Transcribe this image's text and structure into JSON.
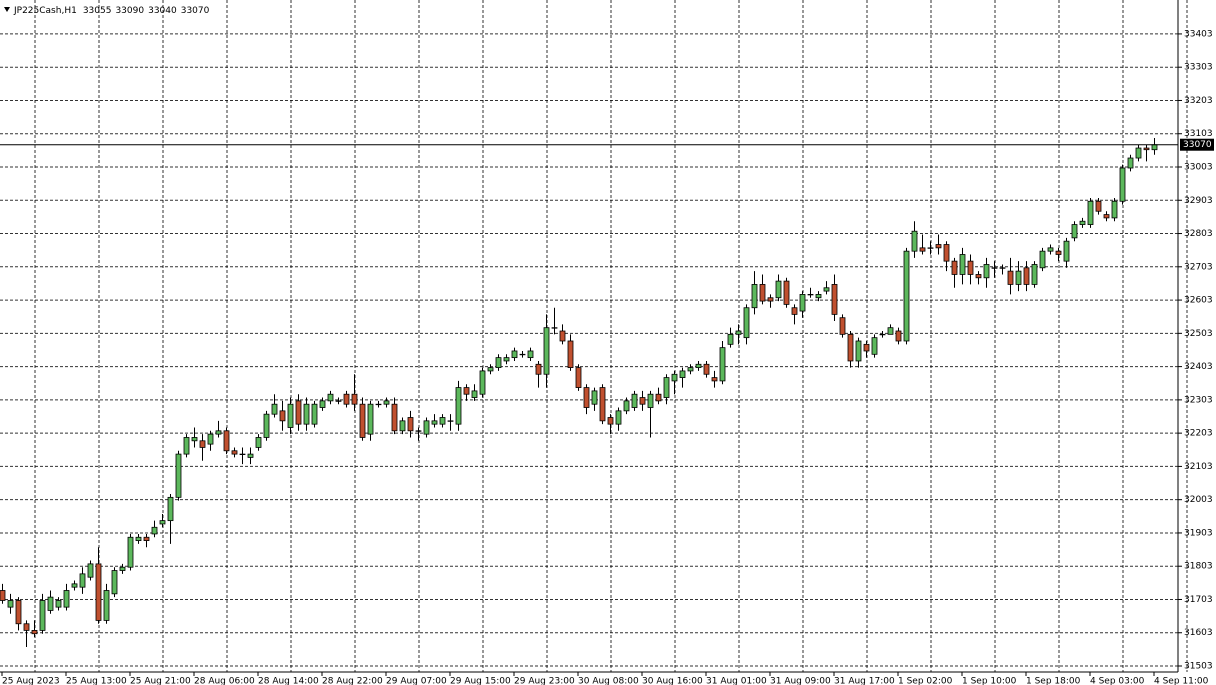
{
  "chart_data": {
    "type": "candlestick",
    "title": "JP225Cash,H1",
    "categories": [
      "25 Aug 2023",
      null,
      null,
      null,
      null,
      null,
      null,
      null,
      "25 Aug 13:00",
      null,
      null,
      null,
      null,
      null,
      null,
      null,
      "25 Aug 21:00",
      null,
      null,
      null,
      null,
      null,
      null,
      null,
      "28 Aug 06:00",
      null,
      null,
      null,
      null,
      null,
      null,
      null,
      "28 Aug 14:00",
      null,
      null,
      null,
      null,
      null,
      null,
      null,
      "28 Aug 22:00",
      null,
      null,
      null,
      null,
      null,
      null,
      null,
      "29 Aug 07:00",
      null,
      null,
      null,
      null,
      null,
      null,
      null,
      "29 Aug 15:00",
      null,
      null,
      null,
      null,
      null,
      null,
      null,
      "29 Aug 23:00",
      null,
      null,
      null,
      null,
      null,
      null,
      null,
      "30 Aug 08:00",
      null,
      null,
      null,
      null,
      null,
      null,
      null,
      "30 Aug 16:00",
      null,
      null,
      null,
      null,
      null,
      null,
      null,
      "31 Aug 01:00",
      null,
      null,
      null,
      null,
      null,
      null,
      null,
      "31 Aug 09:00",
      null,
      null,
      null,
      null,
      null,
      null,
      null,
      "31 Aug 17:00",
      null,
      null,
      null,
      null,
      null,
      null,
      null,
      "1 Sep 02:00",
      null,
      null,
      null,
      null,
      null,
      null,
      null,
      "1 Sep 10:00",
      null,
      null,
      null,
      null,
      null,
      null,
      null,
      "1 Sep 18:00",
      null,
      null,
      null,
      null,
      null,
      null,
      null,
      "4 Sep 03:00",
      null,
      null,
      null,
      null,
      null,
      null,
      null,
      "4 Sep 11:00"
    ],
    "open": [
      31730,
      31680,
      31700,
      31630,
      31610,
      31610,
      31670,
      31680,
      31680,
      31740,
      31740,
      31770,
      31810,
      31640,
      31720,
      31790,
      31800,
      31880,
      31890,
      31900,
      31930,
      31940,
      32010,
      32140,
      32180,
      32180,
      32170,
      32200,
      32210,
      32150,
      32140,
      32130,
      32160,
      32190,
      32260,
      32270,
      32220,
      32300,
      32230,
      32230,
      32280,
      32300,
      32300,
      32320,
      32320,
      32290,
      32200,
      32290,
      32290,
      32290,
      32210,
      32250,
      32210,
      32200,
      32230,
      32230,
      32240,
      32230,
      32340,
      32310,
      32320,
      32390,
      32400,
      32420,
      32430,
      32440,
      32430,
      32410,
      32380,
      32520,
      32510,
      32480,
      32400,
      32340,
      32290,
      32340,
      32250,
      32230,
      32270,
      32280,
      32310,
      32280,
      32320,
      32310,
      32360,
      32370,
      32390,
      32400,
      32410,
      32370,
      32360,
      32470,
      32500,
      32490,
      32580,
      32650,
      32610,
      32610,
      32660,
      32580,
      32570,
      32620,
      32610,
      32630,
      32650,
      32550,
      32500,
      32420,
      32470,
      32440,
      32500,
      32500,
      32510,
      32480,
      32750,
      32760,
      32760,
      32770,
      32770,
      32720,
      32680,
      32720,
      32680,
      32670,
      32700,
      32700,
      32690,
      32650,
      32700,
      32650,
      32700,
      32750,
      32750,
      32720,
      32790,
      32830,
      32830,
      32900,
      32860,
      32850,
      32900,
      33000,
      33030,
      33060,
      33055
    ],
    "high": [
      31750,
      31720,
      31710,
      31640,
      31640,
      31720,
      31730,
      31710,
      31750,
      31760,
      31800,
      31820,
      31860,
      31750,
      31800,
      31810,
      31900,
      31900,
      31900,
      31940,
      31960,
      32020,
      32150,
      32200,
      32220,
      32200,
      32210,
      32240,
      32220,
      32160,
      32160,
      32160,
      32200,
      32270,
      32320,
      32300,
      32310,
      32320,
      32310,
      32300,
      32310,
      32330,
      32310,
      32330,
      32380,
      32310,
      32300,
      32300,
      32310,
      32310,
      32250,
      32270,
      32220,
      32250,
      32260,
      32260,
      32260,
      32360,
      32350,
      32350,
      32400,
      32410,
      32440,
      32440,
      32460,
      32450,
      32460,
      32420,
      32560,
      32580,
      32530,
      32500,
      32410,
      32350,
      32340,
      32350,
      32260,
      32280,
      32310,
      32330,
      32330,
      32330,
      32340,
      32380,
      32390,
      32400,
      32410,
      32420,
      32420,
      32390,
      32480,
      32520,
      32530,
      32590,
      32690,
      32680,
      32620,
      32680,
      32670,
      32590,
      32630,
      32640,
      32630,
      32660,
      32680,
      32560,
      32510,
      32490,
      32480,
      32500,
      32510,
      32530,
      32520,
      32760,
      32840,
      32800,
      32780,
      32800,
      32780,
      32730,
      32760,
      32740,
      32690,
      32730,
      32720,
      32710,
      32730,
      32720,
      32720,
      32720,
      32760,
      32770,
      32760,
      32790,
      32840,
      32850,
      32910,
      32910,
      32870,
      32910,
      33010,
      33040,
      33070,
      33070,
      33090
    ],
    "low": [
      31690,
      31660,
      31610,
      31560,
      31590,
      31600,
      31660,
      31670,
      31670,
      31730,
      31720,
      31760,
      31630,
      31630,
      31710,
      31780,
      31790,
      31870,
      31860,
      31890,
      31920,
      31870,
      32000,
      32130,
      32160,
      32120,
      32150,
      32190,
      32140,
      32130,
      32110,
      32110,
      32150,
      32180,
      32250,
      32210,
      32200,
      32210,
      32210,
      32220,
      32270,
      32290,
      32290,
      32280,
      32270,
      32180,
      32180,
      32280,
      32280,
      32200,
      32200,
      32190,
      32180,
      32190,
      32220,
      32220,
      32210,
      32210,
      32300,
      32300,
      32310,
      32380,
      32390,
      32410,
      32420,
      32430,
      32420,
      32340,
      32340,
      32500,
      32470,
      32390,
      32330,
      32260,
      32270,
      32230,
      32200,
      32210,
      32260,
      32270,
      32270,
      32190,
      32290,
      32290,
      32320,
      32340,
      32380,
      32390,
      32370,
      32340,
      32350,
      32460,
      32470,
      32470,
      32560,
      32590,
      32580,
      32600,
      32580,
      32530,
      32550,
      32610,
      32600,
      32620,
      32540,
      32490,
      32400,
      32400,
      32430,
      32430,
      32490,
      32500,
      32470,
      32470,
      32730,
      32740,
      32740,
      32740,
      32690,
      32640,
      32650,
      32650,
      32650,
      32640,
      32670,
      32680,
      32620,
      32630,
      32630,
      32640,
      32690,
      32740,
      32720,
      32700,
      32780,
      32820,
      32820,
      32860,
      32840,
      32840,
      32890,
      32990,
      33020,
      33020,
      33040
    ],
    "close": [
      31700,
      31700,
      31630,
      31610,
      31600,
      31700,
      31710,
      31700,
      31730,
      31750,
      31780,
      31810,
      31640,
      31730,
      31790,
      31800,
      31890,
      31890,
      31880,
      31920,
      31940,
      32010,
      32140,
      32190,
      32190,
      32160,
      32200,
      32210,
      32150,
      32140,
      32140,
      32140,
      32190,
      32260,
      32290,
      32240,
      32290,
      32230,
      32290,
      32290,
      32300,
      32320,
      32300,
      32290,
      32290,
      32190,
      32290,
      32290,
      32300,
      32210,
      32240,
      32210,
      32210,
      32240,
      32240,
      32250,
      32240,
      32340,
      32320,
      32330,
      32390,
      32400,
      32430,
      32430,
      32450,
      32440,
      32450,
      32380,
      32520,
      32520,
      32480,
      32400,
      32340,
      32280,
      32330,
      32240,
      32230,
      32270,
      32300,
      32320,
      32290,
      32320,
      32300,
      32370,
      32380,
      32390,
      32400,
      32410,
      32380,
      32360,
      32460,
      32500,
      32510,
      32580,
      32650,
      32600,
      32600,
      32660,
      32590,
      32560,
      32620,
      32620,
      32620,
      32640,
      32560,
      32500,
      32420,
      32480,
      32450,
      32490,
      32500,
      32520,
      32480,
      32750,
      32810,
      32750,
      32760,
      32760,
      32720,
      32680,
      32740,
      32680,
      32670,
      32710,
      32700,
      32700,
      32650,
      32690,
      32650,
      32710,
      32750,
      32760,
      32740,
      32780,
      32830,
      32840,
      32900,
      32870,
      32850,
      32900,
      33000,
      33030,
      33060,
      33055,
      33070
    ],
    "up_color": "#5cb85c",
    "down_color": "#c0502f",
    "ylim": [
      31485,
      33505
    ],
    "yticks": [
      31503,
      31603,
      31703,
      31803,
      31903,
      32003,
      32103,
      32203,
      32303,
      32403,
      32503,
      32603,
      32703,
      32803,
      32903,
      33003,
      33103,
      33203,
      33303,
      33403
    ],
    "grid": true
  }
}
